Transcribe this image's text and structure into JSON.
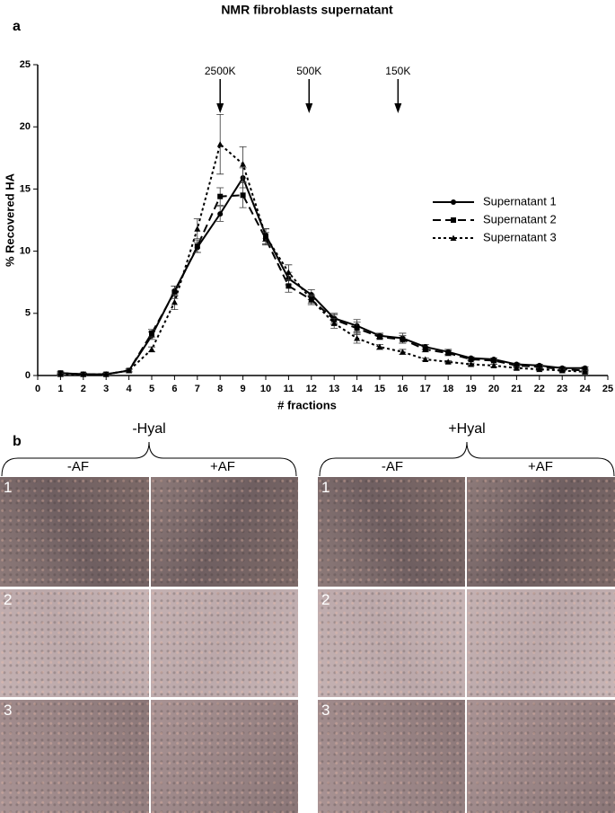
{
  "panel_labels": [
    "a",
    "b"
  ],
  "chart_data": {
    "type": "line",
    "title": "NMR fibroblasts supernatant",
    "x_label": "# fractions",
    "y_label": "% Recovered HA",
    "x": [
      1,
      2,
      3,
      4,
      5,
      6,
      7,
      8,
      9,
      10,
      11,
      12,
      13,
      14,
      15,
      16,
      17,
      18,
      19,
      20,
      21,
      22,
      23,
      24
    ],
    "series": [
      {
        "name": "Supernatant 1",
        "color": "#000000",
        "line_style": "solid",
        "marker": "circle",
        "values": [
          0.2,
          0.1,
          0.1,
          0.4,
          3.2,
          6.8,
          10.3,
          13.0,
          15.9,
          11.3,
          7.8,
          6.5,
          4.6,
          4.0,
          3.2,
          3.0,
          2.3,
          1.9,
          1.4,
          1.3,
          0.9,
          0.8,
          0.6,
          0.6
        ],
        "errors": [
          0.1,
          0.1,
          0.1,
          0.1,
          0.3,
          0.4,
          0.4,
          0.6,
          0.8,
          0.5,
          0.5,
          0.4,
          0.4,
          0.5,
          0.2,
          0.4,
          0.2,
          0.2,
          0.1,
          0.1,
          0.1,
          0.1,
          0.1,
          0.1
        ]
      },
      {
        "name": "Supernatant 2",
        "color": "#000000",
        "line_style": "dashed",
        "marker": "square",
        "values": [
          0.2,
          0.1,
          0.1,
          0.4,
          3.4,
          6.7,
          10.4,
          14.4,
          14.5,
          11.0,
          7.2,
          6.1,
          4.5,
          3.8,
          3.1,
          2.9,
          2.1,
          1.8,
          1.3,
          1.2,
          0.8,
          0.7,
          0.5,
          0.4
        ],
        "errors": [
          0.1,
          0.1,
          0.1,
          0.1,
          0.3,
          0.5,
          0.5,
          0.7,
          1.0,
          0.5,
          0.5,
          0.4,
          0.4,
          0.5,
          0.2,
          0.3,
          0.2,
          0.2,
          0.1,
          0.1,
          0.1,
          0.1,
          0.1,
          0.1
        ]
      },
      {
        "name": "Supernatant 3",
        "color": "#000000",
        "line_style": "dotted",
        "marker": "triangle",
        "values": [
          0.1,
          0.1,
          0.1,
          0.4,
          2.1,
          5.9,
          11.8,
          18.6,
          17.0,
          11.2,
          8.3,
          6.1,
          4.2,
          3.0,
          2.3,
          1.9,
          1.3,
          1.1,
          0.9,
          0.8,
          0.6,
          0.5,
          0.4,
          0.3
        ],
        "errors": [
          0.1,
          0.1,
          0.1,
          0.1,
          0.2,
          0.6,
          0.8,
          2.4,
          1.4,
          0.6,
          0.6,
          0.3,
          0.4,
          0.4,
          0.2,
          0.2,
          0.1,
          0.1,
          0.1,
          0.1,
          0.1,
          0.1,
          0.1,
          0.1
        ]
      }
    ],
    "annotations": [
      {
        "text": "2500K",
        "x": 8
      },
      {
        "text": "500K",
        "x": 11.9
      },
      {
        "text": "150K",
        "x": 15.8
      }
    ],
    "xlim": [
      0,
      25
    ],
    "xticks": [
      0,
      1,
      2,
      3,
      4,
      5,
      6,
      7,
      8,
      9,
      10,
      11,
      12,
      13,
      14,
      15,
      16,
      17,
      18,
      19,
      20,
      21,
      22,
      23,
      24,
      25
    ],
    "ylim": [
      0,
      25
    ],
    "yticks": [
      0,
      5,
      10,
      15,
      20,
      25
    ],
    "grid": false,
    "legend": "right"
  },
  "images": {
    "groups": [
      {
        "label": "-Hyal",
        "columns": [
          "-AF",
          "+AF"
        ]
      },
      {
        "label": "+Hyal",
        "columns": [
          "-AF",
          "+AF"
        ]
      }
    ],
    "rows": [
      "1",
      "2",
      "3"
    ]
  }
}
